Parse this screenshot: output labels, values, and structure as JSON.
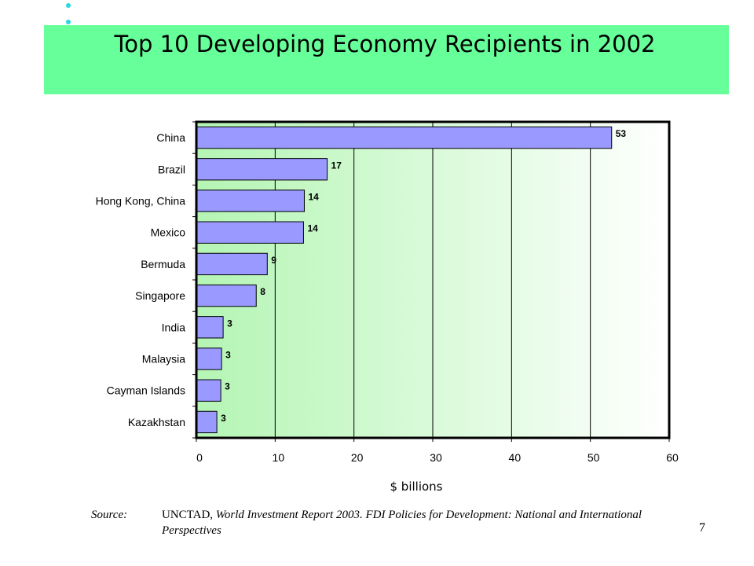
{
  "slide": {
    "page_number": "7",
    "source_label": "Source:",
    "source_org": "UNCTAD",
    "source_rest": "World Investment Report 2003.  FDI Policies for Development: National and International Perspectives",
    "colors": {
      "title_band": "#66ff99",
      "bullet": "#29d7e0",
      "bar_fill": "#9999ff"
    }
  },
  "chart_data": {
    "type": "bar",
    "orientation": "horizontal",
    "title": "Top 10 Developing Economy Recipients in 2002",
    "xlabel": "$ billions",
    "ylabel": "",
    "categories": [
      "China",
      "Brazil",
      "Hong Kong, China",
      "Mexico",
      "Bermuda",
      "Singapore",
      "India",
      "Malaysia",
      "Cayman Islands",
      "Kazakhstan"
    ],
    "values": [
      52.7,
      16.6,
      13.7,
      13.6,
      9.0,
      7.6,
      3.4,
      3.2,
      3.1,
      2.6
    ],
    "data_labels": [
      "53",
      "17",
      "14",
      "14",
      "9",
      "8",
      "3",
      "3",
      "3",
      "3"
    ],
    "xlim": [
      0,
      60
    ],
    "xticks": [
      0,
      10,
      20,
      30,
      40,
      50,
      60
    ],
    "grid": "vertical",
    "legend": "none"
  }
}
